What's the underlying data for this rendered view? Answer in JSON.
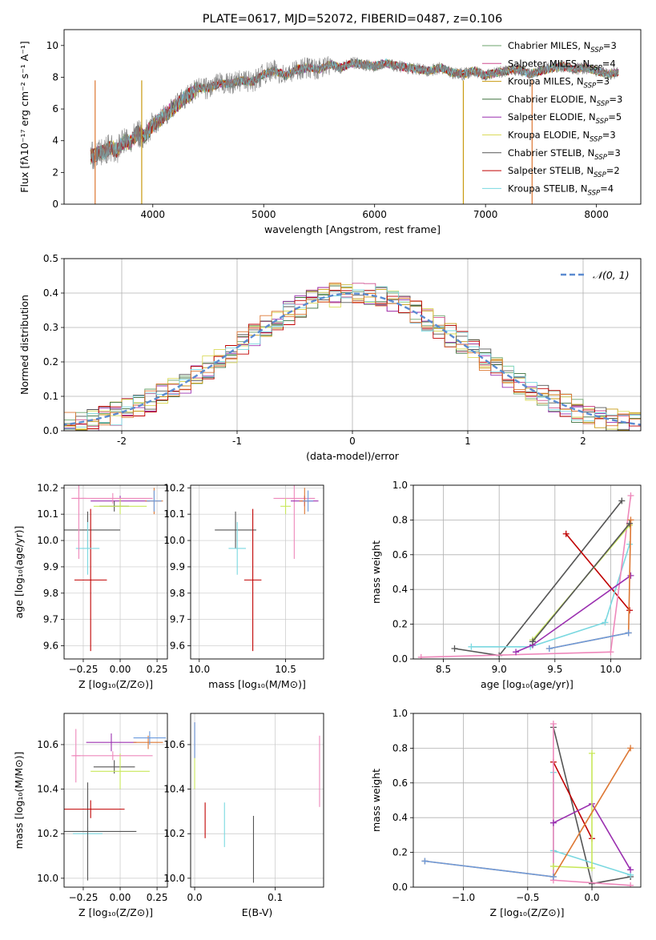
{
  "figure": {
    "title": "PLATE=0617, MJD=52072, FIBERID=0487, z=0.106"
  },
  "chart_data": [
    {
      "id": "spectrum",
      "type": "line",
      "title": "PLATE=0617, MJD=52072, FIBERID=0487, z=0.106",
      "xlabel": "wavelength [Angstrom, rest frame]",
      "ylabel": "Flux [fλ10⁻¹⁷ erg cm⁻² s⁻¹ A⁻¹]",
      "xlim": [
        3200,
        8400
      ],
      "ylim": [
        0,
        11
      ],
      "xticks": [
        4000,
        5000,
        6000,
        7000,
        8000
      ],
      "yticks": [
        0,
        2,
        4,
        6,
        8,
        10
      ],
      "grid": false,
      "legend_position": "top-right",
      "data_curve": {
        "x": [
          3440,
          3500,
          3560,
          3620,
          3680,
          3740,
          3800,
          3860,
          3920,
          3980,
          4040,
          4100,
          4160,
          4220,
          4280,
          4340,
          4400,
          4500,
          4600,
          4700,
          4800,
          4900,
          5000,
          5100,
          5200,
          5300,
          5400,
          5500,
          5600,
          5700,
          5800,
          5900,
          6000,
          6100,
          6200,
          6300,
          6400,
          6500,
          6600,
          6700,
          6800,
          6900,
          7000,
          7100,
          7200,
          7300,
          7400,
          7500,
          7600,
          7700,
          7800,
          7900,
          8000,
          8100,
          8200
        ],
        "y": [
          3.0,
          3.2,
          3.3,
          3.6,
          3.4,
          4.0,
          3.9,
          4.5,
          4.3,
          4.8,
          5.2,
          5.6,
          5.9,
          6.3,
          6.7,
          6.9,
          7.3,
          7.3,
          7.6,
          7.6,
          7.8,
          7.7,
          8.2,
          8.4,
          8.1,
          8.5,
          8.6,
          8.5,
          8.8,
          8.6,
          8.9,
          8.8,
          8.7,
          8.9,
          8.7,
          8.6,
          8.5,
          8.4,
          8.6,
          8.3,
          8.2,
          8.4,
          8.1,
          8.3,
          8.4,
          8.5,
          8.2,
          8.4,
          8.6,
          8.7,
          8.5,
          8.6,
          8.4,
          8.2,
          8.3
        ]
      },
      "series": [
        {
          "label": "Chabrier MILES, N_SSP=3",
          "color": "#6ba36b"
        },
        {
          "label": "Salpeter MILES, N_SSP=4",
          "color": "#cf4f8f"
        },
        {
          "label": "Kroupa MILES, N_SSP=3",
          "color": "#c89a10"
        },
        {
          "label": "Chabrier ELODIE, N_SSP=3",
          "color": "#3a6f3a"
        },
        {
          "label": "Salpeter ELODIE, N_SSP=5",
          "color": "#9b30b0"
        },
        {
          "label": "Kroupa ELODIE, N_SSP=3",
          "color": "#dada5a"
        },
        {
          "label": "Chabrier STELIB, N_SSP=3",
          "color": "#555555"
        },
        {
          "label": "Salpeter STELIB, N_SSP=2",
          "color": "#c00000"
        },
        {
          "label": "Kroupa STELIB, N_SSP=4",
          "color": "#7ad8e0"
        }
      ]
    },
    {
      "id": "residuals",
      "type": "line",
      "xlabel": "(data-model)/error",
      "ylabel": "Normed distribution",
      "xlim": [
        -2.5,
        2.5
      ],
      "ylim": [
        0,
        0.5
      ],
      "xticks": [
        -2,
        -1,
        0,
        1,
        2
      ],
      "yticks": [
        0.0,
        0.1,
        0.2,
        0.3,
        0.4,
        0.5
      ],
      "grid": true,
      "legend_position": "top-right",
      "gaussian_label": "𝒩(0, 1)",
      "gaussian_color": "#5b8bd0",
      "hist_bin_width": 0.1,
      "hist_colors": [
        "#6ba36b",
        "#cf4f8f",
        "#c89a10",
        "#3a6f3a",
        "#9b30b0",
        "#dada5a",
        "#555555",
        "#c00000",
        "#7ad8e0",
        "#dd7733"
      ]
    },
    {
      "id": "age-vs-Z",
      "type": "scatter",
      "xlabel": "Z [log₁₀(Z/Z⊙)]",
      "ylabel": "age  [log₁₀(age/yr)]",
      "xlim": [
        -0.38,
        0.32
      ],
      "ylim": [
        9.55,
        10.21
      ],
      "xticks": [
        -0.25,
        0.0,
        0.25
      ],
      "xticklabels": [
        "−0.25",
        "0.00",
        "0.25"
      ],
      "yticks": [
        9.6,
        9.7,
        9.8,
        9.9,
        10.0,
        10.1,
        10.2
      ],
      "points": [
        {
          "x": -0.22,
          "xerr": 0.22,
          "y": 10.04,
          "yerr": 0.07,
          "color": "#555555"
        },
        {
          "x": -0.2,
          "xerr": 0.11,
          "y": 9.85,
          "yerr": 0.27,
          "color": "#c00000"
        },
        {
          "x": -0.22,
          "xerr": 0.08,
          "y": 9.97,
          "yerr": 0.1,
          "color": "#7ad8e0"
        },
        {
          "x": -0.28,
          "xerr": 0.05,
          "y": 10.16,
          "yerr": 0.23,
          "color": "#ee88bb"
        },
        {
          "x": -0.0,
          "xerr": 0.2,
          "y": 10.15,
          "yerr": 0.02,
          "color": "#9b30b0"
        },
        {
          "x": -0.04,
          "xerr": 0.1,
          "y": 10.13,
          "yerr": 0.02,
          "color": "#555555"
        },
        {
          "x": 0.0,
          "xerr": 0.18,
          "y": 10.13,
          "yerr": 0.03,
          "color": "#c8e85a"
        },
        {
          "x": 0.23,
          "xerr": 0.06,
          "y": 10.15,
          "yerr": 0.05,
          "color": "#dd7733"
        },
        {
          "x": 0.23,
          "xerr": 0.05,
          "y": 10.15,
          "yerr": 0.04,
          "color": "#6b9bdd"
        },
        {
          "x": -0.05,
          "xerr": 0.27,
          "y": 10.16,
          "yerr": 0.02,
          "color": "#ee88bb"
        }
      ]
    },
    {
      "id": "age-vs-mass",
      "type": "scatter",
      "xlabel": "mass [log₁₀(M/M⊙)]",
      "ylabel": "",
      "xlim": [
        9.95,
        10.72
      ],
      "ylim": [
        9.55,
        10.21
      ],
      "xticks": [
        10.0,
        10.5
      ],
      "xticklabels": [
        "10.0",
        "10.5"
      ],
      "yticks": [
        9.6,
        9.7,
        9.8,
        9.9,
        10.0,
        10.1,
        10.2
      ],
      "points": [
        {
          "x": 10.21,
          "xerr": 0.12,
          "y": 10.04,
          "yerr": 0.07,
          "color": "#555555"
        },
        {
          "x": 10.31,
          "xerr": 0.05,
          "y": 9.85,
          "yerr": 0.27,
          "color": "#c00000"
        },
        {
          "x": 10.22,
          "xerr": 0.05,
          "y": 9.97,
          "yerr": 0.1,
          "color": "#7ad8e0"
        },
        {
          "x": 10.55,
          "xerr": 0.12,
          "y": 10.16,
          "yerr": 0.23,
          "color": "#ee88bb"
        },
        {
          "x": 10.61,
          "xerr": 0.08,
          "y": 10.15,
          "yerr": 0.02,
          "color": "#9b30b0"
        },
        {
          "x": 10.5,
          "xerr": 0.03,
          "y": 10.13,
          "yerr": 0.03,
          "color": "#c8e85a"
        },
        {
          "x": 10.61,
          "xerr": 0.03,
          "y": 10.15,
          "yerr": 0.05,
          "color": "#dd7733"
        },
        {
          "x": 10.63,
          "xerr": 0.03,
          "y": 10.15,
          "yerr": 0.04,
          "color": "#6b9bdd"
        }
      ]
    },
    {
      "id": "weight-vs-age",
      "type": "line",
      "xlabel": "age  [log₁₀(age/yr)]",
      "ylabel": "mass weight",
      "xlim": [
        8.23,
        10.27
      ],
      "ylim": [
        0,
        1
      ],
      "xticks": [
        8.5,
        9.0,
        9.5,
        10.0
      ],
      "xticklabels": [
        "8.5",
        "9.0",
        "9.5",
        "10.0"
      ],
      "yticks": [
        0.0,
        0.2,
        0.4,
        0.6,
        0.8,
        1.0
      ],
      "grid": true,
      "series": [
        {
          "color": "#555555",
          "x": [
            8.6,
            9.0,
            10.1
          ],
          "y": [
            0.06,
            0.02,
            0.91
          ]
        },
        {
          "color": "#c00000",
          "x": [
            9.6,
            10.17
          ],
          "y": [
            0.72,
            0.28
          ]
        },
        {
          "color": "#7ad8e0",
          "x": [
            8.75,
            9.28,
            9.95,
            10.17
          ],
          "y": [
            0.07,
            0.07,
            0.21,
            0.66
          ]
        },
        {
          "color": "#ee88bb",
          "x": [
            8.3,
            10.0,
            10.18
          ],
          "y": [
            0.01,
            0.04,
            0.94
          ]
        },
        {
          "color": "#9b30b0",
          "x": [
            9.15,
            9.3,
            10.18
          ],
          "y": [
            0.04,
            0.08,
            0.48
          ]
        },
        {
          "color": "#c8e85a",
          "x": [
            9.3,
            10.17
          ],
          "y": [
            0.11,
            0.77
          ]
        },
        {
          "color": "#dd7733",
          "x": [
            9.45,
            10.16,
            10.18
          ],
          "y": [
            0.06,
            0.15,
            0.8
          ]
        },
        {
          "color": "#6b9bdd",
          "x": [
            9.45,
            10.16
          ],
          "y": [
            0.06,
            0.15
          ]
        },
        {
          "color": "#555555",
          "x": [
            9.3,
            10.17
          ],
          "y": [
            0.1,
            0.78
          ]
        }
      ]
    },
    {
      "id": "mass-vs-Z",
      "type": "scatter",
      "xlabel": "Z [log₁₀(Z/Z⊙)]",
      "ylabel": "mass [log₁₀(M/M⊙)]",
      "xlim": [
        -0.38,
        0.32
      ],
      "ylim": [
        9.96,
        10.74
      ],
      "xticks": [
        -0.25,
        0.0,
        0.25
      ],
      "xticklabels": [
        "−0.25",
        "0.00",
        "0.25"
      ],
      "yticks": [
        10.0,
        10.2,
        10.4,
        10.6
      ],
      "points": [
        {
          "x": -0.22,
          "xerr": 0.1,
          "y": 10.2,
          "yerr": 0.03,
          "color": "#7ad8e0"
        },
        {
          "x": -0.22,
          "xerr": 0.33,
          "y": 10.21,
          "yerr": 0.22,
          "color": "#555555"
        },
        {
          "x": -0.2,
          "xerr": 0.23,
          "y": 10.31,
          "yerr": 0.04,
          "color": "#c00000"
        },
        {
          "x": -0.3,
          "xerr": 0.03,
          "y": 10.55,
          "yerr": 0.12,
          "color": "#ee88bb"
        },
        {
          "x": -0.04,
          "xerr": 0.14,
          "y": 10.5,
          "yerr": 0.03,
          "color": "#555555"
        },
        {
          "x": 0.0,
          "xerr": 0.2,
          "y": 10.48,
          "yerr": 0.08,
          "color": "#c8e85a"
        },
        {
          "x": -0.06,
          "xerr": 0.17,
          "y": 10.61,
          "yerr": 0.04,
          "color": "#9b30b0"
        },
        {
          "x": -0.05,
          "xerr": 0.27,
          "y": 10.55,
          "yerr": 0.02,
          "color": "#ee88bb"
        },
        {
          "x": 0.19,
          "xerr": 0.1,
          "y": 10.61,
          "yerr": 0.03,
          "color": "#dd7733"
        },
        {
          "x": 0.2,
          "xerr": 0.11,
          "y": 10.63,
          "yerr": 0.03,
          "color": "#6b9bdd"
        }
      ]
    },
    {
      "id": "ebv",
      "type": "scatter",
      "xlabel": "E(B-V)",
      "ylabel": "",
      "xlim": [
        -0.005,
        0.16
      ],
      "ylim": [
        9.96,
        10.74
      ],
      "xticks": [
        0.0,
        0.1
      ],
      "xticklabels": [
        "0.0",
        "0.1"
      ],
      "yticks": [
        10.0,
        10.2,
        10.4,
        10.6
      ],
      "points": [
        {
          "x": 0.0,
          "y": 10.55,
          "yerr": 0.15,
          "color": "#c8e85a"
        },
        {
          "x": 0.0,
          "y": 10.62,
          "yerr": 0.08,
          "color": "#9b30b0"
        },
        {
          "x": 0.0,
          "y": 10.62,
          "yerr": 0.08,
          "color": "#6b9bdd"
        },
        {
          "x": 0.013,
          "y": 10.26,
          "yerr": 0.08,
          "color": "#c00000"
        },
        {
          "x": 0.037,
          "y": 10.24,
          "yerr": 0.1,
          "color": "#7ad8e0"
        },
        {
          "x": 0.073,
          "y": 10.13,
          "yerr": 0.15,
          "color": "#555555"
        },
        {
          "x": 0.155,
          "y": 10.48,
          "yerr": 0.16,
          "color": "#ee88bb"
        }
      ]
    },
    {
      "id": "weight-vs-Z",
      "type": "line",
      "xlabel": "Z [log₁₀(Z/Z⊙)]",
      "ylabel": "mass weight",
      "xlim": [
        -1.39,
        0.38
      ],
      "ylim": [
        0,
        1
      ],
      "xticks": [
        -1.0,
        -0.5,
        0.0
      ],
      "xticklabels": [
        "−1.0",
        "−0.5",
        "0.0"
      ],
      "yticks": [
        0.0,
        0.2,
        0.4,
        0.6,
        0.8,
        1.0
      ],
      "grid": true,
      "series": [
        {
          "color": "#555555",
          "x": [
            -0.3,
            0.0,
            0.3
          ],
          "y": [
            0.92,
            0.02,
            0.06
          ]
        },
        {
          "color": "#c00000",
          "x": [
            -0.3,
            0.0
          ],
          "y": [
            0.72,
            0.28
          ]
        },
        {
          "color": "#7ad8e0",
          "x": [
            -0.3,
            -0.3,
            -0.3,
            0.3
          ],
          "y": [
            0.66,
            0.06,
            0.21,
            0.07
          ]
        },
        {
          "color": "#ee88bb",
          "x": [
            -0.3,
            -0.3,
            0.3
          ],
          "y": [
            0.94,
            0.04,
            0.01
          ]
        },
        {
          "color": "#9b30b0",
          "x": [
            -0.3,
            0.0,
            0.3
          ],
          "y": [
            0.37,
            0.48,
            0.1
          ]
        },
        {
          "color": "#c8e85a",
          "x": [
            -0.3,
            0.0,
            0.0
          ],
          "y": [
            0.12,
            0.11,
            0.77
          ]
        },
        {
          "color": "#dd7733",
          "x": [
            -1.3,
            -0.3,
            0.3
          ],
          "y": [
            0.15,
            0.06,
            0.8
          ]
        },
        {
          "color": "#6b9bdd",
          "x": [
            -1.3,
            -0.3
          ],
          "y": [
            0.15,
            0.06
          ]
        }
      ]
    }
  ]
}
